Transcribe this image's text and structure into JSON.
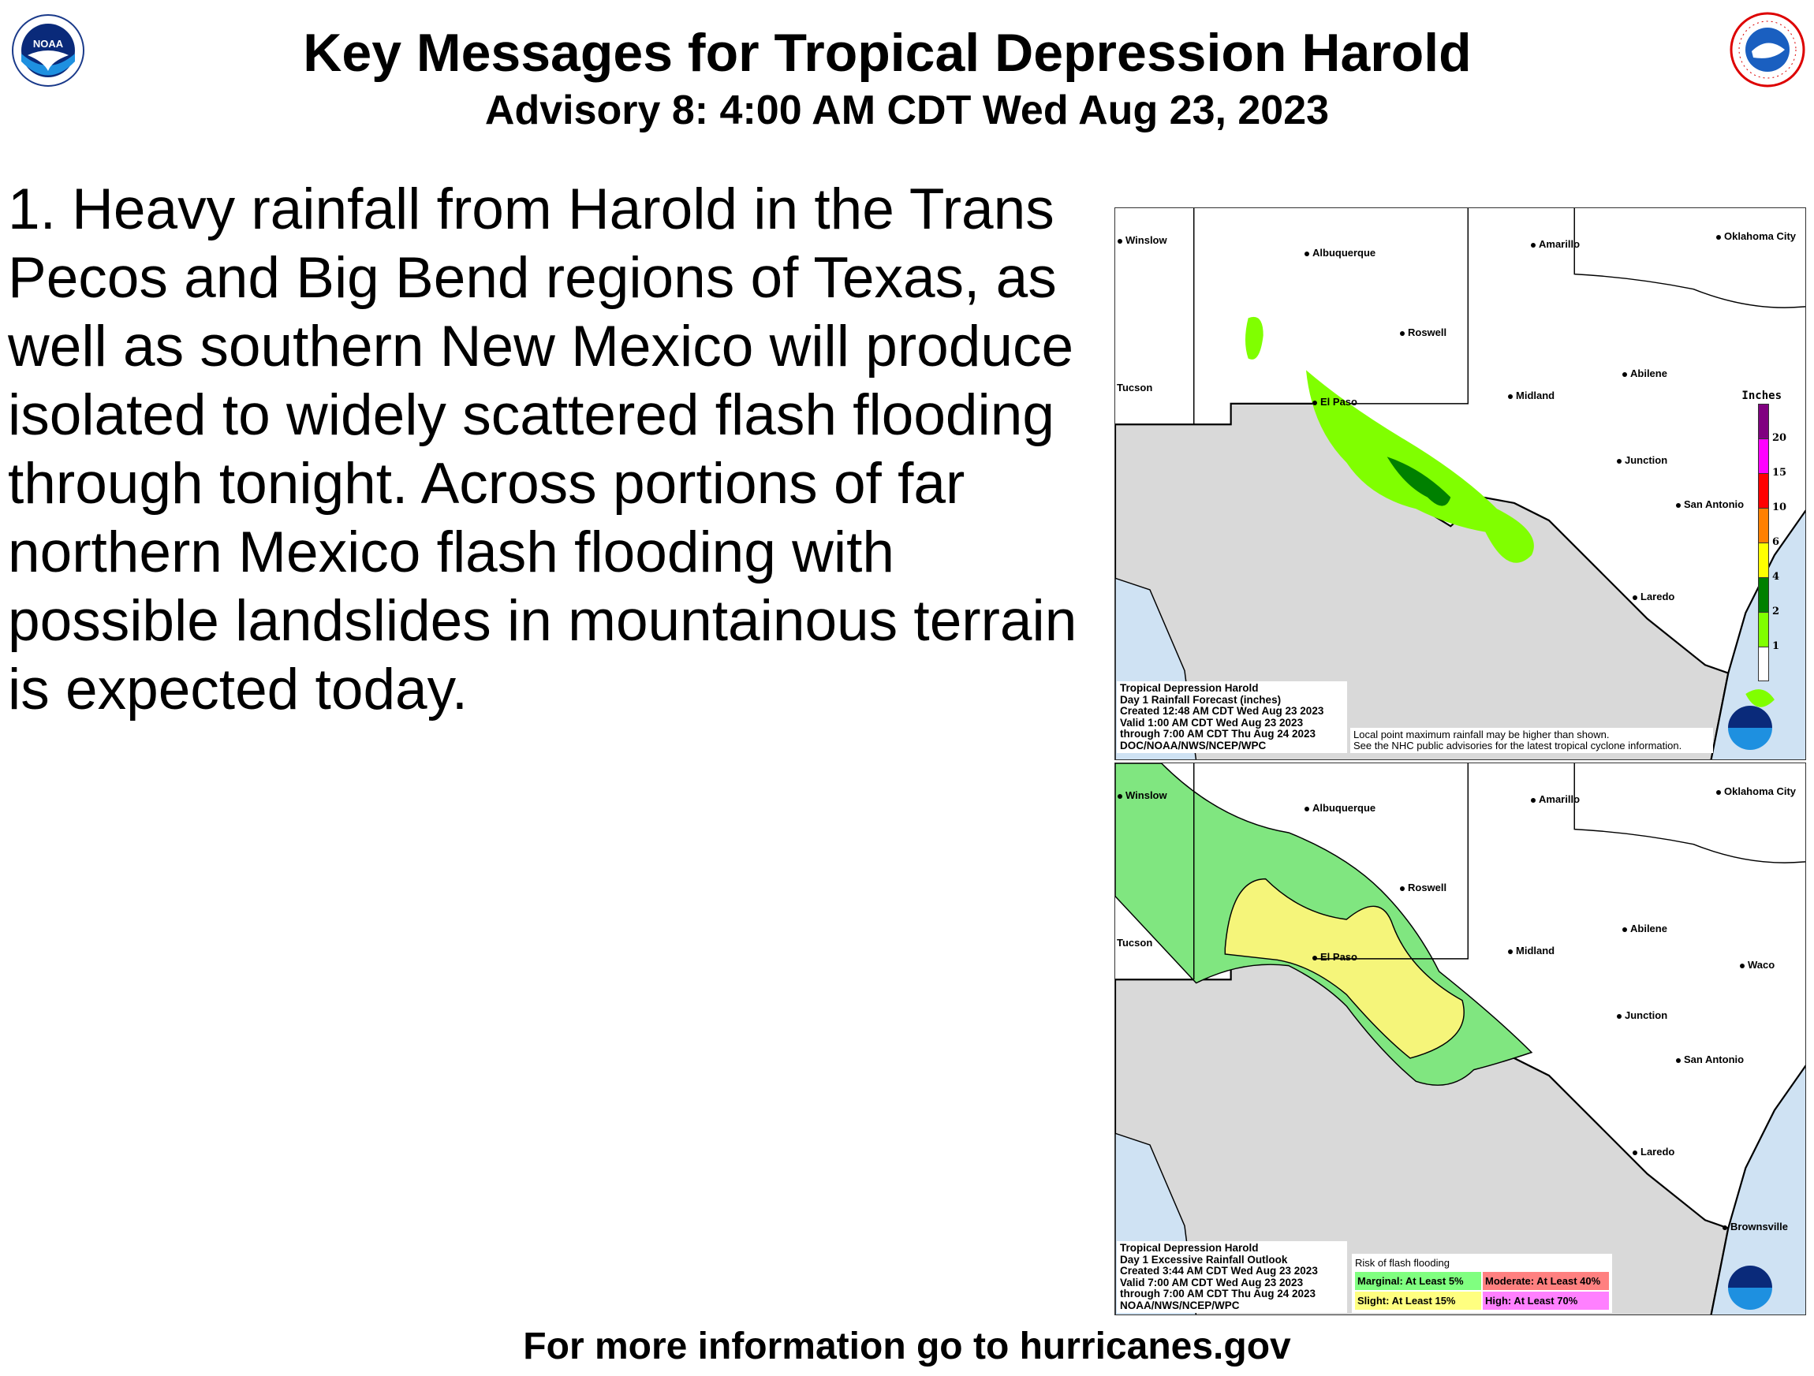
{
  "header": {
    "title": "Key Messages for Tropical Depression Harold",
    "subtitle": "Advisory 8:  4:00 AM CDT Wed Aug 23, 2023",
    "left_logo": "noaa-logo",
    "right_logo": "nws-logo"
  },
  "message": "1. Heavy rainfall from Harold in the Trans Pecos and Big Bend regions of Texas, as well as southern New Mexico will produce isolated to widely scattered flash flooding through tonight. Across portions of far northern Mexico flash flooding with possible landslides in mountainous terrain is expected today.",
  "cities": [
    "Winslow",
    "Albuquerque",
    "Amarillo",
    "Oklahoma City",
    "Roswell",
    "Tucson",
    "El Paso",
    "Midland",
    "Abilene",
    "Waco",
    "Junction",
    "San Antonio",
    "Laredo",
    "Brownsville"
  ],
  "rainfall_map": {
    "caption": [
      "Tropical Depression Harold",
      "Day 1 Rainfall Forecast (inches)",
      "Created 12:48 AM CDT Wed Aug 23 2023",
      "Valid 1:00 AM CDT Wed Aug 23 2023",
      "through 7:00 AM CDT Thu Aug 24 2023",
      "DOC/NOAA/NWS/NCEP/WPC"
    ],
    "note": [
      "Local point maximum rainfall may be higher than shown.",
      "See the NHC public advisories for the latest tropical cyclone information."
    ],
    "legend_title": "Inches",
    "legend": [
      {
        "label": "20",
        "color": "#800080"
      },
      {
        "label": "15",
        "color": "#ff00ff"
      },
      {
        "label": "10",
        "color": "#ff0000"
      },
      {
        "label": "6",
        "color": "#ff8000"
      },
      {
        "label": "4",
        "color": "#ffff00"
      },
      {
        "label": "2",
        "color": "#008000"
      },
      {
        "label": "1",
        "color": "#80ff00"
      },
      {
        "label": "",
        "color": "#ffffff"
      }
    ]
  },
  "ero_map": {
    "caption": [
      "Tropical Depression Harold",
      "Day 1 Excessive Rainfall Outlook",
      "Created 3:44 AM CDT Wed Aug 23 2023",
      "Valid 7:00 AM CDT Wed Aug 23 2023",
      "through 7:00 AM CDT Thu Aug 24 2023",
      "NOAA/NWS/NCEP/WPC"
    ],
    "legend_title": "Risk of flash flooding",
    "legend": [
      {
        "label": "Marginal: At Least 5%",
        "color": "#80ff80"
      },
      {
        "label": "Moderate: At Least 40%",
        "color": "#ff8080"
      },
      {
        "label": "Slight: At Least 15%",
        "color": "#ffff80"
      },
      {
        "label": "High: At Least 70%",
        "color": "#ff80ff"
      }
    ]
  },
  "footer": "For more information go to hurricanes.gov"
}
